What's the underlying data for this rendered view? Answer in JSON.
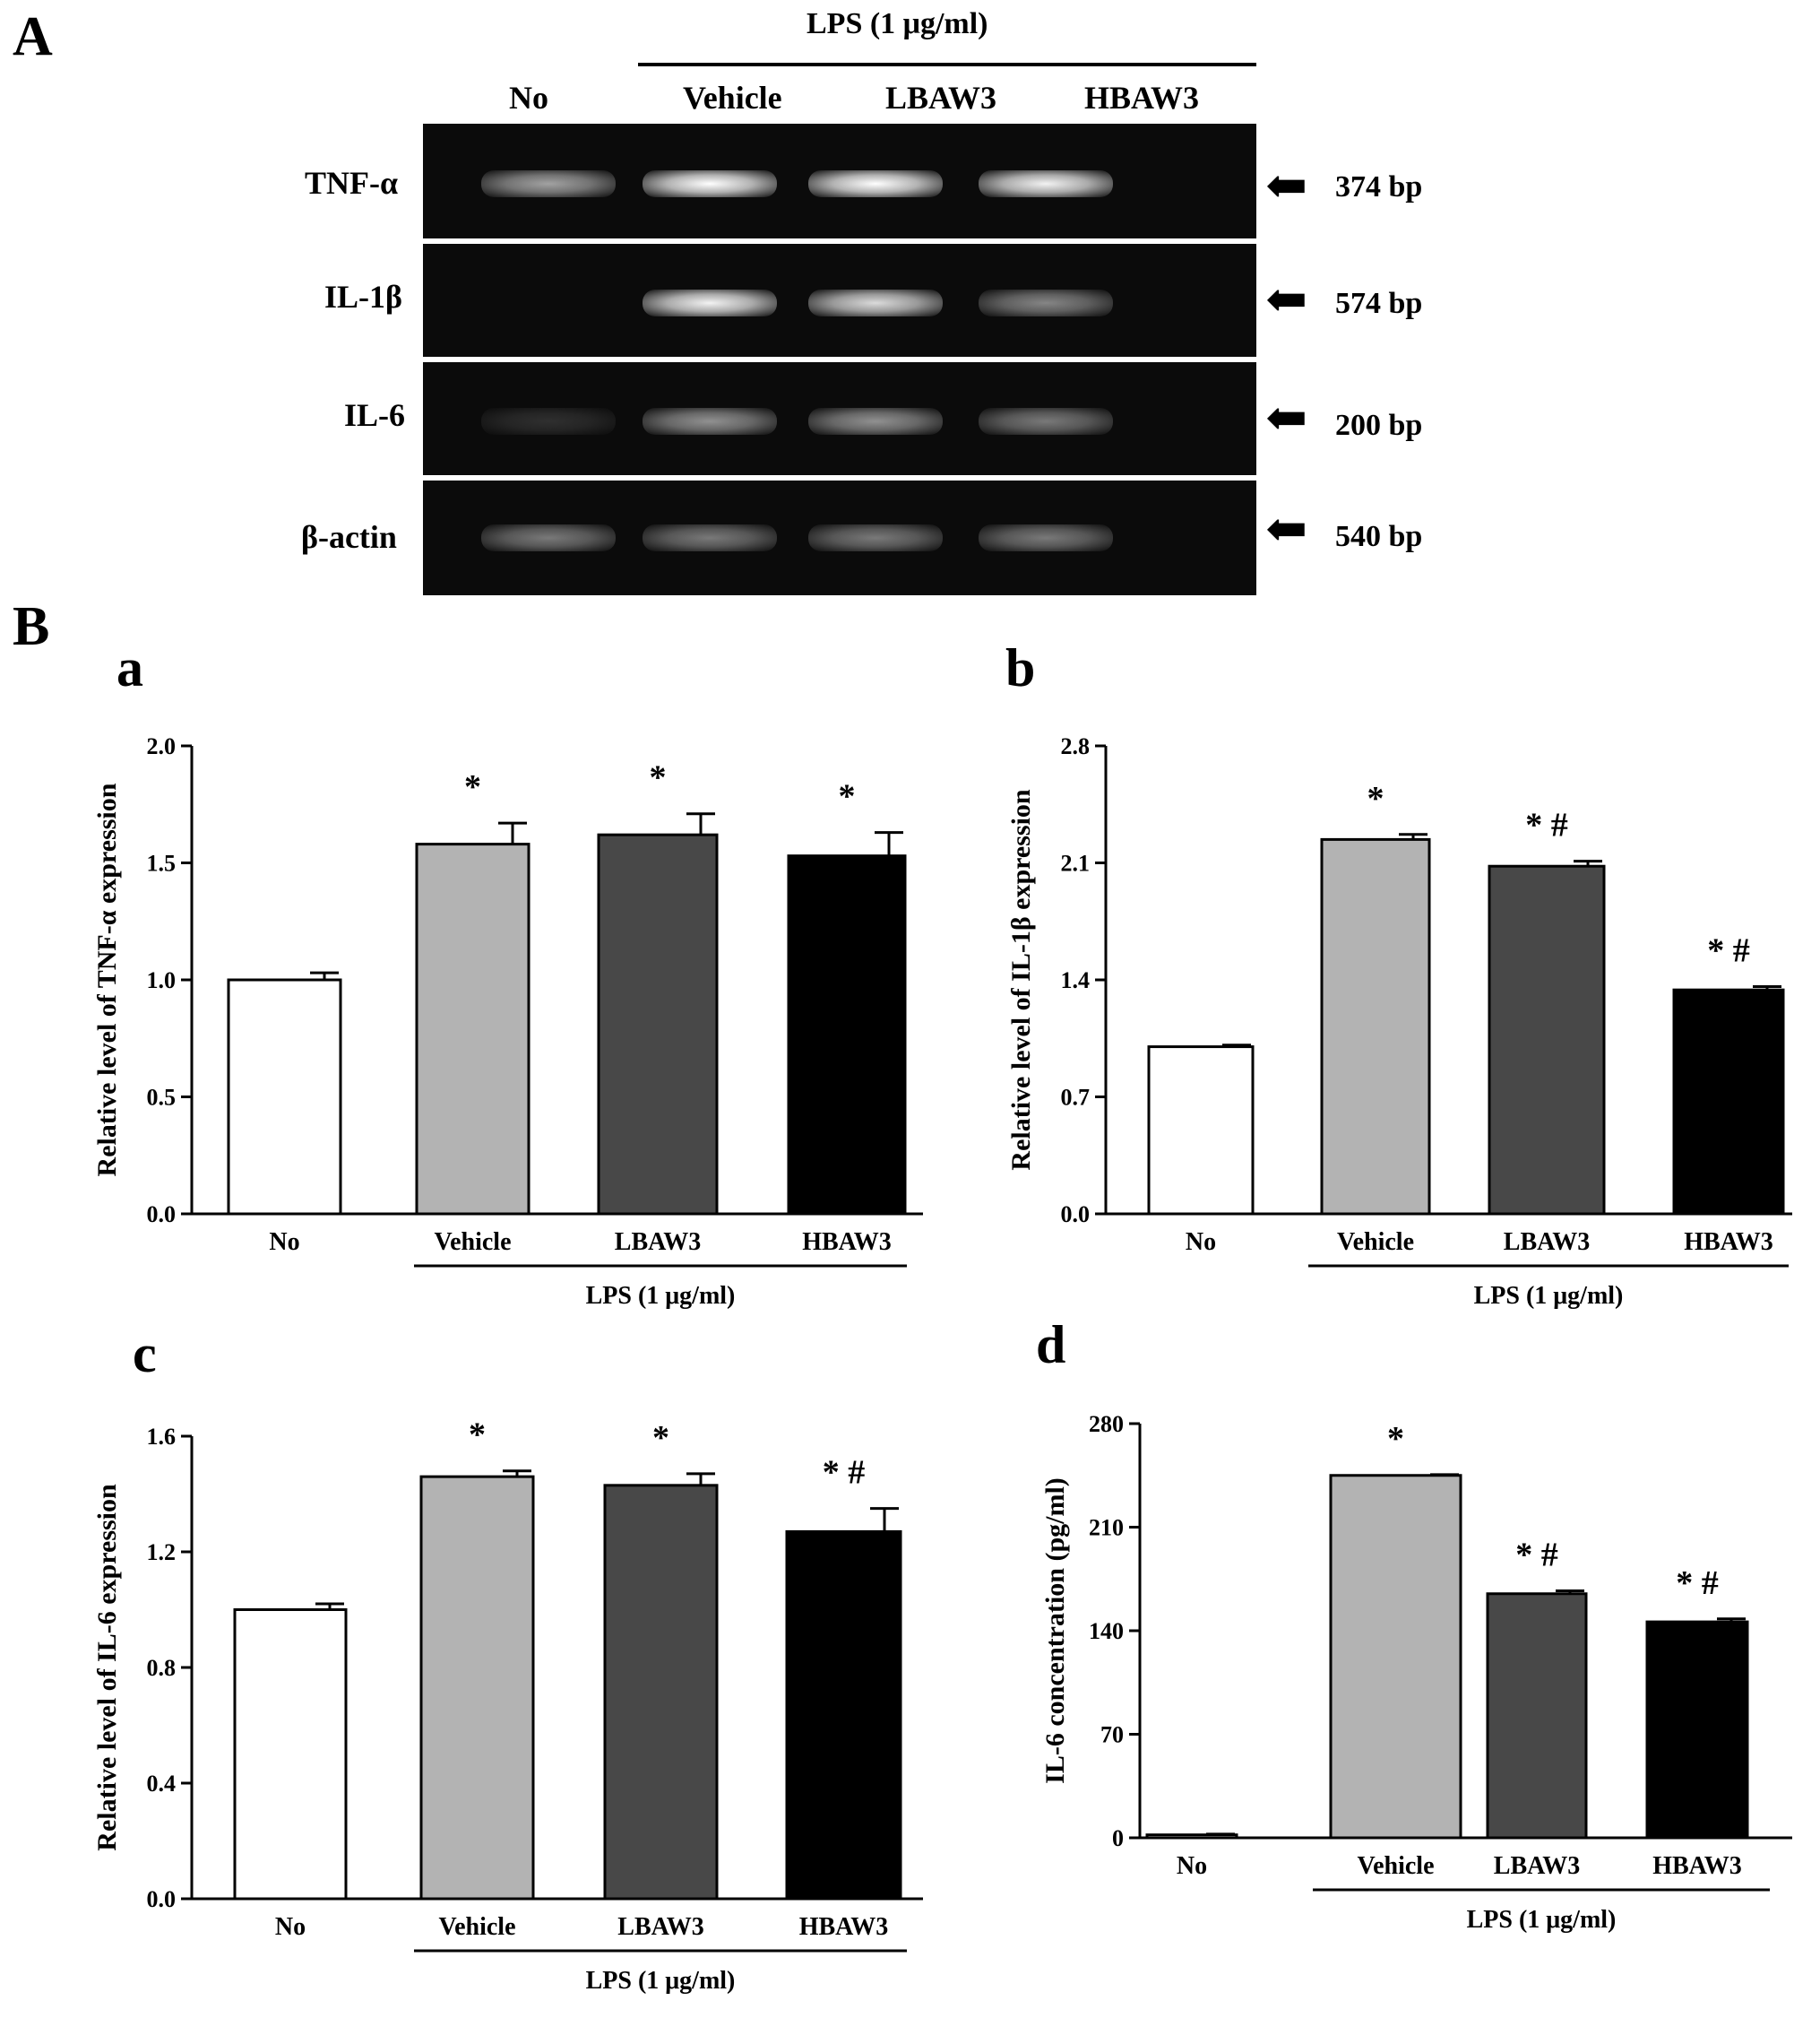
{
  "panel_labels": {
    "A": "A",
    "B": "B"
  },
  "gel": {
    "lps_header": "LPS (1 μg/ml)",
    "lanes": [
      "No",
      "Vehicle",
      "LBAW3",
      "HBAW3"
    ],
    "rows": [
      {
        "gene": "TNF-α",
        "size": "374 bp",
        "intensities": [
          0.62,
          1.0,
          1.0,
          0.95
        ]
      },
      {
        "gene": "IL-1β",
        "size": "574 bp",
        "intensities": [
          0.0,
          0.95,
          0.85,
          0.5
        ]
      },
      {
        "gene": "IL-6",
        "size": "200 bp",
        "intensities": [
          0.15,
          0.55,
          0.55,
          0.45
        ]
      },
      {
        "gene": "β-actin",
        "size": "540 bp",
        "intensities": [
          0.45,
          0.45,
          0.45,
          0.45
        ]
      }
    ],
    "colors": {
      "gel_bg": "#0b0b0b",
      "band": "#f4f4f4"
    }
  },
  "chart_data": [
    {
      "panel": "a",
      "type": "bar",
      "categories": [
        "No",
        "Vehicle",
        "LBAW3",
        "HBAW3"
      ],
      "values": [
        1.0,
        1.58,
        1.62,
        1.53
      ],
      "errors": [
        0.03,
        0.09,
        0.09,
        0.1
      ],
      "marks": [
        "",
        "*",
        "*",
        "*"
      ],
      "ylabel": "Relative level of TNF-α expression",
      "yticks": [
        "0.0",
        "0.5",
        "1.0",
        "1.5",
        "2.0"
      ],
      "ylim": [
        0,
        2.0
      ],
      "group_label": "LPS (1 μg/ml)",
      "bar_colors": [
        "#ffffff",
        "#b3b3b3",
        "#484848",
        "#000000"
      ]
    },
    {
      "panel": "b",
      "type": "bar",
      "categories": [
        "No",
        "Vehicle",
        "LBAW3",
        "HBAW3"
      ],
      "values": [
        1.0,
        2.24,
        2.08,
        1.34
      ],
      "errors": [
        0.01,
        0.03,
        0.03,
        0.02
      ],
      "marks": [
        "",
        "*",
        "* #",
        "* #"
      ],
      "ylabel": "Relative level of IL-1β expression",
      "yticks": [
        "0.0",
        "0.7",
        "1.4",
        "2.1",
        "2.8"
      ],
      "ylim": [
        0,
        2.8
      ],
      "group_label": "LPS (1 μg/ml)",
      "bar_colors": [
        "#ffffff",
        "#b3b3b3",
        "#484848",
        "#000000"
      ]
    },
    {
      "panel": "c",
      "type": "bar",
      "categories": [
        "No",
        "Vehicle",
        "LBAW3",
        "HBAW3"
      ],
      "values": [
        1.0,
        1.46,
        1.43,
        1.27
      ],
      "errors": [
        0.02,
        0.02,
        0.04,
        0.08
      ],
      "marks": [
        "",
        "*",
        "*",
        "* #"
      ],
      "ylabel": "Relative level of IL-6 expression",
      "yticks": [
        "0.0",
        "0.4",
        "0.8",
        "1.2",
        "1.6"
      ],
      "ylim": [
        0,
        1.6
      ],
      "group_label": "LPS (1 μg/ml)",
      "bar_colors": [
        "#ffffff",
        "#b3b3b3",
        "#484848",
        "#000000"
      ]
    },
    {
      "panel": "d",
      "type": "bar",
      "categories": [
        "No",
        "Vehicle",
        "LBAW3",
        "HBAW3"
      ],
      "values": [
        2,
        245,
        165,
        146
      ],
      "errors": [
        0.5,
        0.5,
        2,
        2
      ],
      "marks": [
        "",
        "*",
        "* #",
        "* #"
      ],
      "ylabel": "IL-6 concentration (pg/ml)",
      "yticks": [
        "0",
        "70",
        "140",
        "210",
        "280"
      ],
      "ylim": [
        0,
        280
      ],
      "group_label": "LPS (1 μg/ml)",
      "bar_colors": [
        "#ffffff",
        "#b3b3b3",
        "#484848",
        "#000000"
      ]
    }
  ]
}
